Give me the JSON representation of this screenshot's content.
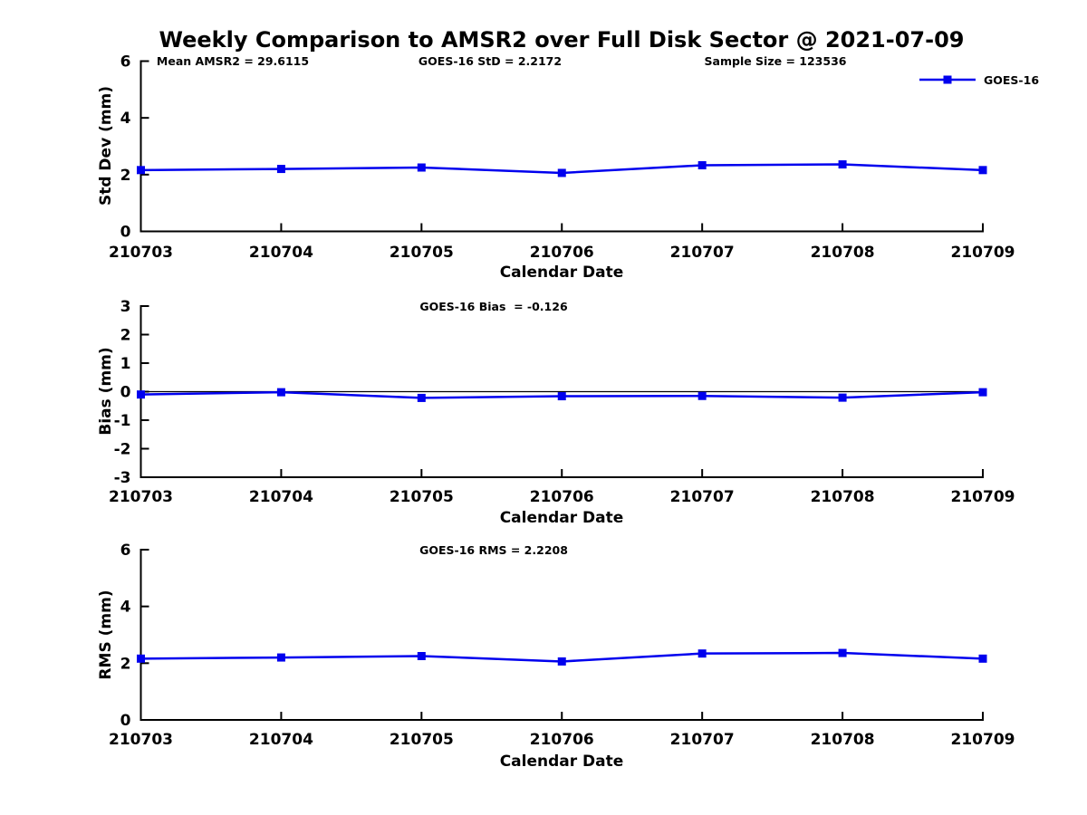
{
  "title": "Weekly Comparison to AMSR2 over Full Disk Sector @ 2021-07-09",
  "colors": {
    "series": "#0000EE",
    "axis": "#000000",
    "text": "#000000",
    "background": "#FFFFFF"
  },
  "categories": [
    "210703",
    "210704",
    "210705",
    "210706",
    "210707",
    "210708",
    "210709"
  ],
  "chart_data": [
    {
      "type": "line",
      "ylabel": "Std Dev (mm)",
      "xlabel": "Calendar Date",
      "ylim": [
        0,
        6
      ],
      "yticks": [
        0,
        2,
        4,
        6
      ],
      "zero_line": false,
      "grid": false,
      "legend_label": "GOES-16",
      "legend_position": "top-right",
      "annotations": [
        "Mean AMSR2 = 29.6115",
        "GOES-16 StD = 2.2172",
        "Sample Size = 123536"
      ],
      "categories": [
        "210703",
        "210704",
        "210705",
        "210706",
        "210707",
        "210708",
        "210709"
      ],
      "series": [
        {
          "name": "GOES-16",
          "values": [
            2.16,
            2.2,
            2.25,
            2.06,
            2.33,
            2.36,
            2.16
          ]
        }
      ]
    },
    {
      "type": "line",
      "ylabel": "Bias (mm)",
      "xlabel": "Calendar Date",
      "ylim": [
        -3,
        3
      ],
      "yticks": [
        -3,
        -2,
        -1,
        0,
        1,
        2,
        3
      ],
      "zero_line": true,
      "grid": false,
      "annotations": [
        "GOES-16 Bias  = -0.126"
      ],
      "categories": [
        "210703",
        "210704",
        "210705",
        "210706",
        "210707",
        "210708",
        "210709"
      ],
      "series": [
        {
          "name": "GOES-16",
          "values": [
            -0.1,
            -0.02,
            -0.22,
            -0.16,
            -0.15,
            -0.21,
            -0.02
          ]
        }
      ]
    },
    {
      "type": "line",
      "ylabel": "RMS (mm)",
      "xlabel": "Calendar Date",
      "ylim": [
        0,
        6
      ],
      "yticks": [
        0,
        2,
        4,
        6
      ],
      "zero_line": false,
      "grid": false,
      "annotations": [
        "GOES-16 RMS = 2.2208"
      ],
      "categories": [
        "210703",
        "210704",
        "210705",
        "210706",
        "210707",
        "210708",
        "210709"
      ],
      "series": [
        {
          "name": "GOES-16",
          "values": [
            2.16,
            2.2,
            2.25,
            2.06,
            2.34,
            2.36,
            2.16
          ]
        }
      ]
    }
  ]
}
